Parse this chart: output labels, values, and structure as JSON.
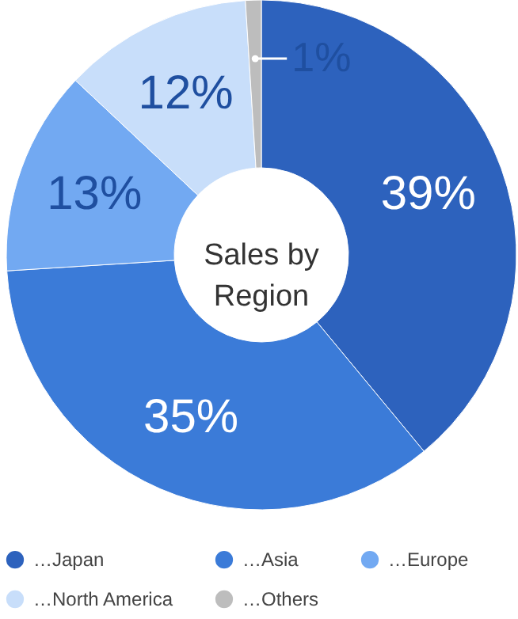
{
  "chart_data": {
    "type": "donut",
    "title": "Sales by\nRegion",
    "categories": [
      "…Japan",
      "…Asia",
      "…Europe",
      "…North America",
      "…Others"
    ],
    "values": [
      39,
      35,
      13,
      12,
      1
    ],
    "colors": [
      "#2d62bd",
      "#3b7bd8",
      "#72a9f2",
      "#c8defa",
      "#bdbdbd"
    ],
    "value_labels": [
      "39%",
      "35%",
      "13%",
      "12%",
      "1%"
    ],
    "legend": "bottom"
  }
}
